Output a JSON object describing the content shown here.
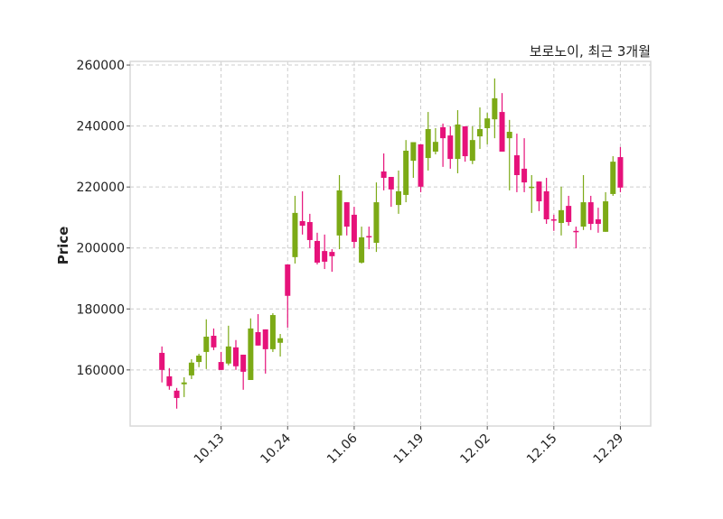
{
  "chart_data": {
    "type": "candlestick",
    "title": "보로노이, 최근 3개월",
    "xlabel": "",
    "ylabel": "Price",
    "ylim": [
      141600,
      261200
    ],
    "xlim": [
      -4.3,
      66.1
    ],
    "grid": true,
    "colors": {
      "up": "#7caa16",
      "down": "#e6127a",
      "grid": "#cccccc",
      "frame": "#d9d9d9"
    },
    "yticks": [
      160000,
      180000,
      200000,
      220000,
      240000,
      260000
    ],
    "ytick_labels": [
      "160000",
      "180000",
      "200000",
      "220000",
      "240000",
      "260000"
    ],
    "xticks": [
      8,
      17,
      26,
      35,
      44,
      53,
      62
    ],
    "xtick_labels": [
      "10.13",
      "10.24",
      "11.06",
      "11.19",
      "12.02",
      "12.15",
      "12.29"
    ],
    "ohlc": [
      [
        165600,
        167700,
        155900,
        160000
      ],
      [
        157900,
        160600,
        153500,
        154700
      ],
      [
        153200,
        154100,
        147300,
        150800
      ],
      [
        155300,
        157600,
        151100,
        155900
      ],
      [
        158200,
        163500,
        157000,
        162400
      ],
      [
        162600,
        165300,
        160900,
        164700
      ],
      [
        165900,
        176600,
        160300,
        170900
      ],
      [
        171200,
        173600,
        166500,
        167400
      ],
      [
        162600,
        165900,
        160000,
        160000
      ],
      [
        162100,
        174500,
        161500,
        167700
      ],
      [
        167400,
        169800,
        160000,
        161200
      ],
      [
        165000,
        165000,
        153500,
        159400
      ],
      [
        156700,
        176900,
        156700,
        173600
      ],
      [
        172400,
        178300,
        168000,
        168000
      ],
      [
        173300,
        173300,
        158800,
        166800
      ],
      [
        166800,
        178600,
        165900,
        178000
      ],
      [
        168900,
        171800,
        164400,
        170400
      ],
      [
        194600,
        194600,
        173900,
        184300
      ],
      [
        197000,
        217100,
        194900,
        211500
      ],
      [
        208800,
        218600,
        204400,
        207300
      ],
      [
        208500,
        211200,
        200000,
        202600
      ],
      [
        202300,
        205000,
        194600,
        195200
      ],
      [
        199000,
        204400,
        193100,
        195500
      ],
      [
        198700,
        199600,
        192200,
        197300
      ],
      [
        204100,
        223900,
        199600,
        218900
      ],
      [
        215000,
        215000,
        204100,
        207000
      ],
      [
        210900,
        213500,
        200000,
        202000
      ],
      [
        195200,
        207000,
        194900,
        203500
      ],
      [
        203900,
        207000,
        199600,
        203500
      ],
      [
        201700,
        221500,
        198700,
        215000
      ],
      [
        225100,
        231000,
        218900,
        223000
      ],
      [
        223300,
        223300,
        213500,
        219200
      ],
      [
        214100,
        225400,
        211200,
        218600
      ],
      [
        217400,
        235400,
        215000,
        231900
      ],
      [
        228600,
        234700,
        223000,
        234700
      ],
      [
        234000,
        234000,
        218300,
        220100
      ],
      [
        229500,
        244600,
        225400,
        239000
      ],
      [
        231600,
        239300,
        230700,
        234800
      ],
      [
        239600,
        240800,
        226600,
        236000
      ],
      [
        236900,
        239900,
        226000,
        229200
      ],
      [
        229200,
        245200,
        224500,
        240500
      ],
      [
        239900,
        239900,
        228300,
        230100
      ],
      [
        228600,
        239900,
        227500,
        235400
      ],
      [
        236600,
        246100,
        232500,
        239000
      ],
      [
        239300,
        244300,
        234000,
        242500
      ],
      [
        242200,
        255600,
        236000,
        249100
      ],
      [
        244600,
        250800,
        231600,
        231600
      ],
      [
        236000,
        242000,
        218900,
        238100
      ],
      [
        230400,
        237500,
        218300,
        223900
      ],
      [
        226000,
        236000,
        218300,
        221500
      ],
      [
        219800,
        223900,
        211500,
        220100
      ],
      [
        221800,
        221800,
        212100,
        215300
      ],
      [
        218600,
        223000,
        207900,
        209400
      ],
      [
        209400,
        210900,
        205600,
        209100
      ],
      [
        208200,
        220100,
        204100,
        212400
      ],
      [
        213800,
        217100,
        207300,
        208500
      ],
      [
        205600,
        207000,
        199900,
        205300
      ],
      [
        207000,
        223900,
        205900,
        215000
      ],
      [
        215000,
        217100,
        205900,
        207900
      ],
      [
        209400,
        213200,
        205000,
        207900
      ],
      [
        205300,
        218300,
        205300,
        215300
      ],
      [
        217700,
        230100,
        217100,
        228300
      ],
      [
        229800,
        233100,
        218300,
        219800
      ]
    ]
  }
}
